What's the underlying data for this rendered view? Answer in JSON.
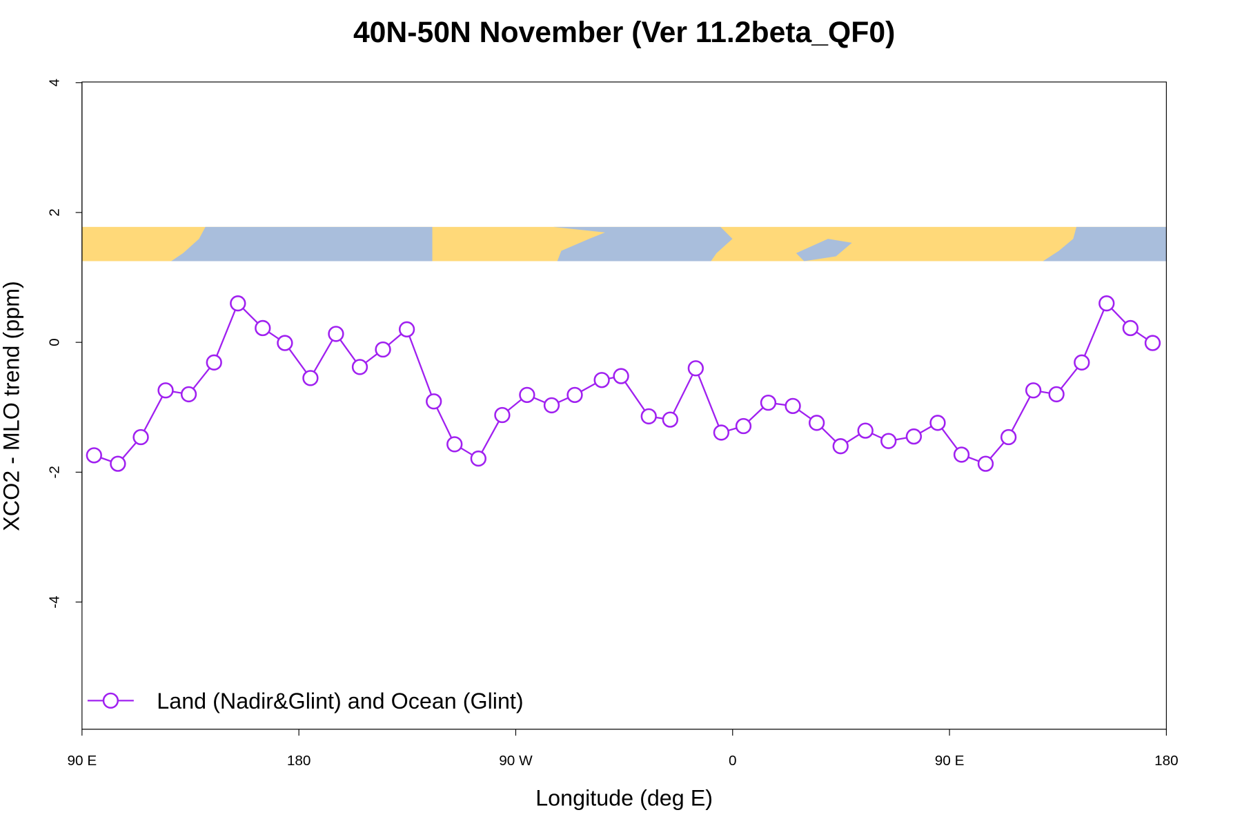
{
  "chart_data": {
    "type": "line",
    "title": "40N-50N November (Ver 11.2beta_QF0)",
    "x_label": "Longitude (deg E)",
    "y_label": "XCO2 - MLO trend (ppm)",
    "xlim": [
      90,
      540
    ],
    "ylim": [
      -5.96,
      4.01
    ],
    "xticks": [
      {
        "value": 90,
        "label": "90 E"
      },
      180,
      {
        "value": 270,
        "label": "90 W"
      },
      {
        "value": 360,
        "label": "0"
      },
      {
        "value": 450,
        "label": "90 E"
      },
      {
        "value": 540,
        "label": "180"
      }
    ],
    "yticks": [
      -4,
      -2,
      0,
      2,
      4
    ],
    "legend": "bottomleft",
    "x": [
      95,
      104.9,
      114.4,
      124.7,
      134.3,
      144.8,
      154.7,
      165,
      174.2,
      184.8,
      195.4,
      205.3,
      214.9,
      224.8,
      236,
      244.6,
      254.5,
      264.4,
      274.7,
      284.9,
      294.5,
      305.7,
      313.7,
      325.2,
      334.1,
      344.7,
      355.3,
      364.5,
      374.8,
      385,
      394.9,
      404.8,
      415.1,
      424.7,
      435.2,
      445.1,
      455,
      465,
      474.5,
      484.8,
      494.4,
      504.9,
      515.2,
      525.1,
      534.3
    ],
    "series": [
      {
        "name": "Land (Nadir&Glint) and Ocean (Glint)",
        "color": "#a020f0",
        "values": [
          -1.74,
          -1.87,
          -1.46,
          -0.74,
          -0.8,
          -0.31,
          0.6,
          0.22,
          -0.01,
          -0.55,
          0.13,
          -0.38,
          -0.11,
          0.2,
          -0.91,
          -1.57,
          -1.79,
          -1.12,
          -0.81,
          -0.97,
          -0.81,
          -0.58,
          -0.52,
          -1.14,
          -1.19,
          -0.4,
          -1.39,
          -1.29,
          -0.93,
          -0.98,
          -1.24,
          -1.6,
          -1.36,
          -1.52,
          -1.45,
          -1.24,
          -1.73,
          -1.87,
          -1.46,
          -0.74,
          -0.8,
          -0.31,
          0.6,
          0.22,
          -0.01
        ]
      }
    ]
  }
}
